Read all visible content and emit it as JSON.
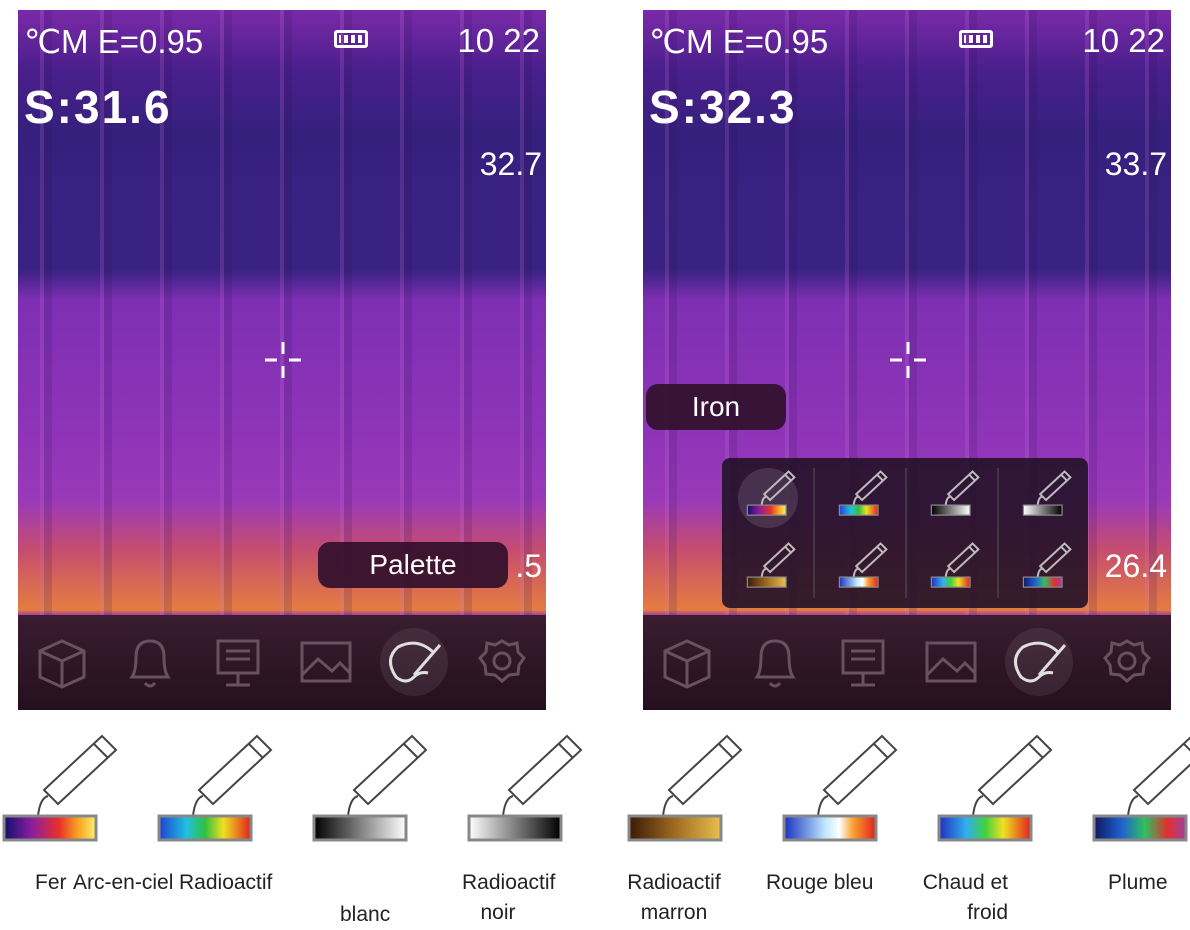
{
  "screens": [
    {
      "status": "℃M E=0.95",
      "time": "10 22",
      "spot": "S:31.6",
      "max": "32.7",
      "min": ".5",
      "menu_label": "Palette"
    },
    {
      "status": "℃M E=0.95",
      "time": "10 22",
      "spot": "S:32.3",
      "max": "33.7",
      "min": "26.4",
      "menu_label": "Iron"
    }
  ],
  "palettes": [
    {
      "lines": [
        "Fer"
      ]
    },
    {
      "lines": [
        "Arc-en-ciel"
      ]
    },
    {
      "lines": [
        "Radioactif"
      ]
    },
    {
      "lines": [
        "blanc"
      ]
    },
    {
      "lines": [
        "Radioactif",
        "noir"
      ]
    },
    {
      "lines": [
        "Radioactif",
        "marron"
      ]
    },
    {
      "lines": [
        "Rouge bleu"
      ]
    },
    {
      "lines": [
        "Chaud et",
        "froid"
      ]
    },
    {
      "lines": [
        "Plume"
      ]
    }
  ]
}
